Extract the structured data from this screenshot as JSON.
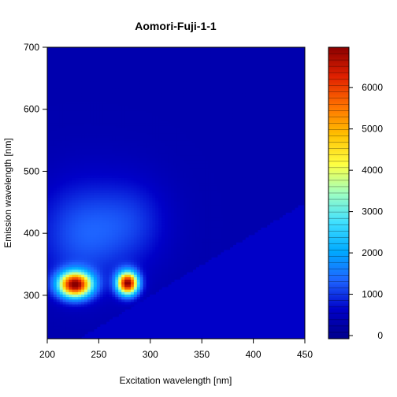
{
  "chart_data": {
    "type": "heatmap",
    "title": "Aomori-Fuji-1-1",
    "xlabel": "Excitation wavelength [nm]",
    "ylabel": "Emission wavelength [nm]",
    "xlim": [
      200,
      450
    ],
    "ylim": [
      230,
      700
    ],
    "x_ticks": [
      200,
      250,
      300,
      350,
      400,
      450
    ],
    "y_ticks": [
      300,
      400,
      500,
      600,
      700
    ],
    "colorbar": {
      "min": 0,
      "max": 6900,
      "ticks": [
        0,
        1000,
        2000,
        3000,
        4000,
        5000,
        6000
      ],
      "colors": [
        "#00008B",
        "#0000C8",
        "#1E64FF",
        "#00AAFF",
        "#40E0FF",
        "#A0FFC0",
        "#FFFF40",
        "#FFC000",
        "#FF7000",
        "#E02000",
        "#8B0000"
      ]
    },
    "peaks": [
      {
        "ex": 227,
        "em": 318,
        "intensity": 6900
      },
      {
        "ex": 278,
        "em": 320,
        "intensity": 6900
      }
    ],
    "background_intensity": 400,
    "rayleigh_cutoff": "emission >= excitation"
  }
}
